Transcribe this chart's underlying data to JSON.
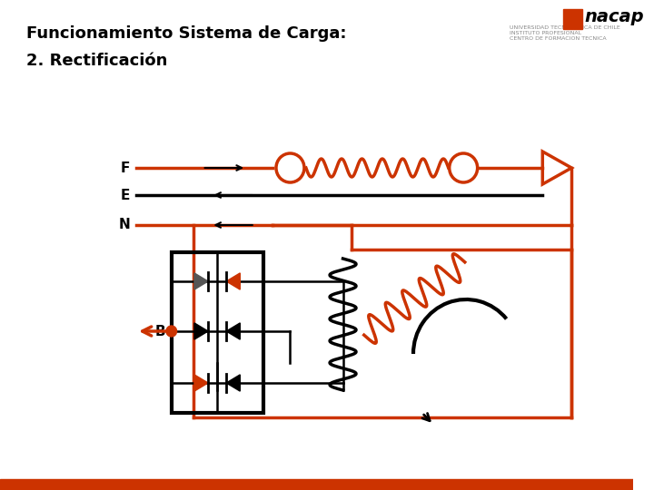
{
  "title1": "Funcionamiento Sistema de Carga:",
  "title2": "2. Rectificación",
  "bg_color": "#ffffff",
  "orange": "#cc3300",
  "black": "#000000",
  "dark_gray": "#333333",
  "label_F": "F",
  "label_E": "E",
  "label_N": "N",
  "label_B": "B",
  "nacap_text": "nacap",
  "footer_color": "#cc3300",
  "title_fontsize": 13,
  "subtitle_fontsize": 13,
  "label_fontsize": 11
}
